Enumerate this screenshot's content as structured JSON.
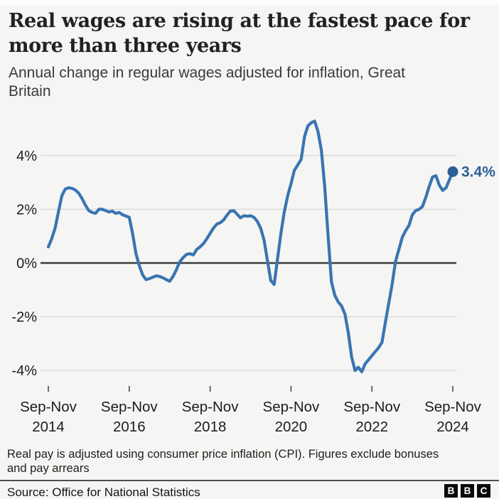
{
  "header": {
    "title_lines": [
      "Real wages are rising at the fastest pace for",
      "more than three years"
    ],
    "subtitle_lines": [
      "Annual change in regular wages adjusted for inflation, Great",
      "Britain"
    ]
  },
  "chart_data": {
    "type": "line",
    "title": "Real wages are rising at the fastest pace for more than three years",
    "subtitle": "Annual change in regular wages adjusted for inflation, Great Britain",
    "unit": "%",
    "ylim": [
      -4.8,
      5.6
    ],
    "grid": true,
    "legend": false,
    "y_ticks": [
      {
        "value": 4,
        "label": "4%"
      },
      {
        "value": 2,
        "label": "2%"
      },
      {
        "value": 0,
        "label": "0%"
      },
      {
        "value": -2,
        "label": "-2%"
      },
      {
        "value": -4,
        "label": "-4%"
      }
    ],
    "x_ticks": [
      {
        "month": 0,
        "line1": "Sep-Nov",
        "line2": "2014"
      },
      {
        "month": 24,
        "line1": "Sep-Nov",
        "line2": "2016"
      },
      {
        "month": 48,
        "line1": "Sep-Nov",
        "line2": "2018"
      },
      {
        "month": 72,
        "line1": "Sep-Nov",
        "line2": "2020"
      },
      {
        "month": 96,
        "line1": "Sep-Nov",
        "line2": "2022"
      },
      {
        "month": 120,
        "line1": "Sep-Nov",
        "line2": "2024"
      }
    ],
    "series": [
      {
        "name": "Annual change in regular wages adjusted for inflation",
        "color": "#3a74b2",
        "start": "Sep-Nov 2014",
        "end": "Sep-Nov 2024",
        "step": "1 month (rolling 3-month periods)",
        "values": [
          0.6,
          0.9,
          1.3,
          1.9,
          2.5,
          2.75,
          2.8,
          2.78,
          2.72,
          2.6,
          2.4,
          2.15,
          1.95,
          1.88,
          1.85,
          2.0,
          2.0,
          1.95,
          1.9,
          1.93,
          1.85,
          1.88,
          1.8,
          1.75,
          1.7,
          1.1,
          0.35,
          -0.1,
          -0.45,
          -0.62,
          -0.58,
          -0.53,
          -0.48,
          -0.5,
          -0.55,
          -0.62,
          -0.68,
          -0.5,
          -0.25,
          0.05,
          0.2,
          0.32,
          0.35,
          0.3,
          0.5,
          0.6,
          0.72,
          0.9,
          1.1,
          1.3,
          1.45,
          1.5,
          1.6,
          1.78,
          1.93,
          1.95,
          1.82,
          1.68,
          1.76,
          1.74,
          1.76,
          1.7,
          1.55,
          1.3,
          0.85,
          0.1,
          -0.65,
          -0.8,
          0.15,
          1.1,
          1.9,
          2.5,
          2.95,
          3.45,
          3.65,
          3.85,
          4.7,
          5.1,
          5.22,
          5.28,
          4.9,
          4.2,
          2.85,
          1.0,
          -0.7,
          -1.2,
          -1.45,
          -1.6,
          -1.9,
          -2.6,
          -3.5,
          -4.0,
          -3.88,
          -4.05,
          -3.75,
          -3.6,
          -3.45,
          -3.3,
          -3.15,
          -2.95,
          -2.2,
          -1.5,
          -0.8,
          0.05,
          0.5,
          0.95,
          1.2,
          1.4,
          1.8,
          1.95,
          2.0,
          2.1,
          2.45,
          2.85,
          3.2,
          3.25,
          2.9,
          2.7,
          2.8,
          3.1,
          3.4
        ]
      }
    ],
    "annotation": {
      "label": "3.4%",
      "value": 3.4
    },
    "colors": {
      "line": "#3a74b2",
      "marker": "#2d5f96",
      "grid": "#d8d8d6",
      "zero_line": "#3c3c3a",
      "text": "#1d1d1d",
      "tick": "#4a4a4a"
    }
  },
  "footer": {
    "note_lines": [
      "Real pay is adjusted using consumer price inflation (CPI). Figures exclude bonuses",
      "and pay arrears"
    ],
    "source": "Source: Office for National Statistics",
    "logo_letters": [
      "B",
      "B",
      "C"
    ]
  }
}
